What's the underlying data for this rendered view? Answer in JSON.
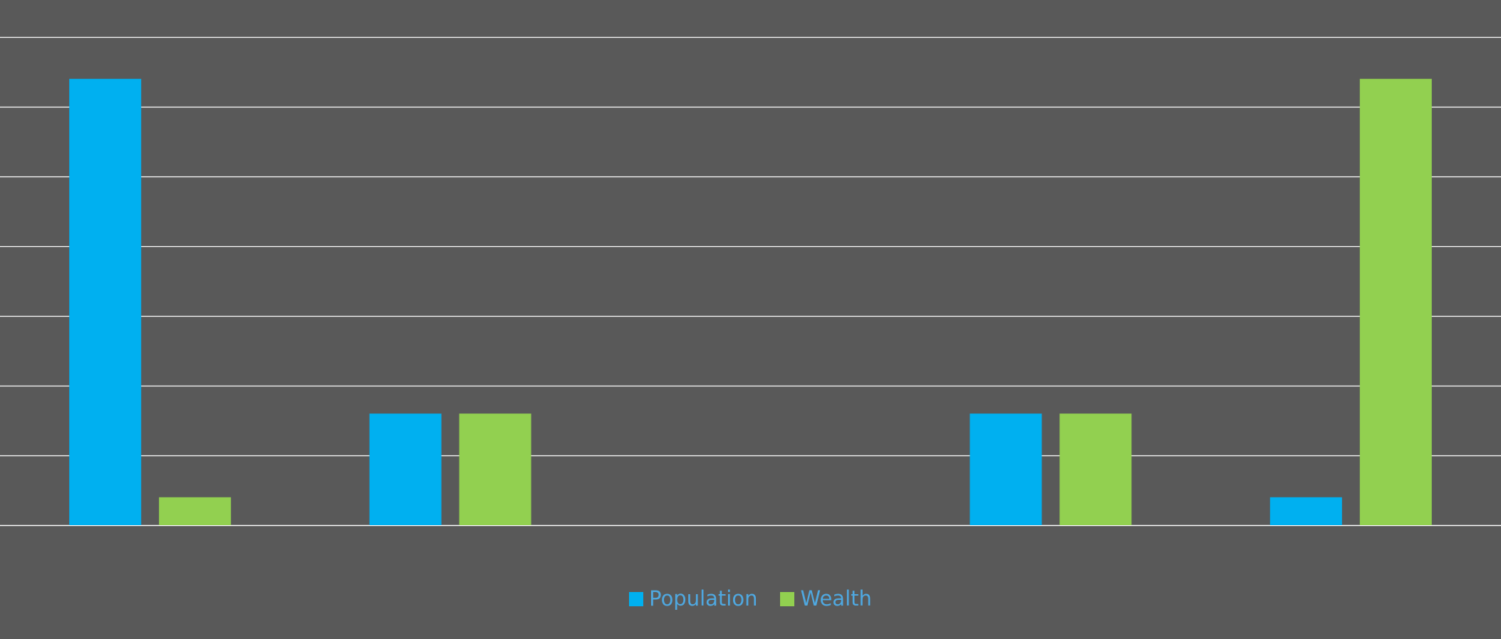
{
  "chart_data": {
    "type": "bar",
    "categories": [
      "",
      "",
      "",
      "",
      ""
    ],
    "series": [
      {
        "name": "Population",
        "values": [
          64,
          16,
          0,
          16,
          4
        ],
        "color": "#00B0F0"
      },
      {
        "name": "Wealth",
        "values": [
          4,
          16,
          0,
          16,
          64
        ],
        "color": "#92D050"
      }
    ],
    "ylim": [
      0,
      70
    ],
    "y_tick_step": 10,
    "grid": true,
    "grid_color": "#FFFFFF",
    "background": "#595959",
    "legend_position": "bottom",
    "legend_text_color": "#4FA8E0",
    "title": "",
    "xlabel": "",
    "ylabel": ""
  }
}
